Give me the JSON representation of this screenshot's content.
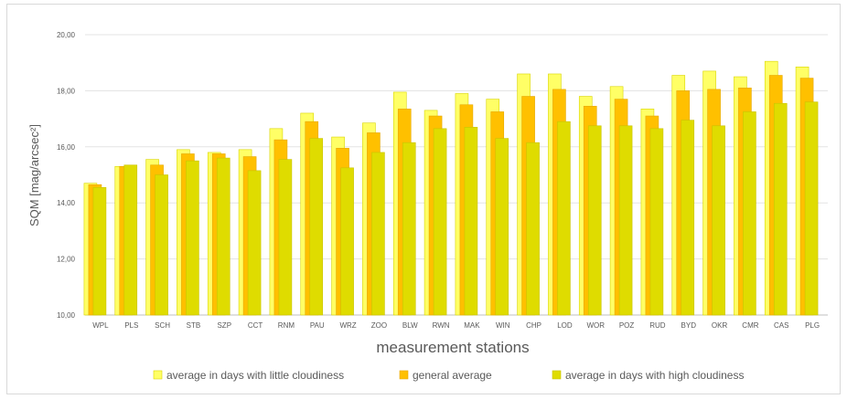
{
  "chart_data": {
    "type": "bar",
    "xlabel": "measurement stations",
    "ylabel": "SQM [mag/arcsec²]",
    "ylim": [
      10,
      20
    ],
    "yticks": [
      "10,00",
      "12,00",
      "14,00",
      "16,00",
      "18,00",
      "20,00"
    ],
    "ytick_values": [
      10,
      12,
      14,
      16,
      18,
      20
    ],
    "grid": true,
    "legend_position": "bottom",
    "categories": [
      "WPL",
      "PLS",
      "SCH",
      "STB",
      "SZP",
      "CCT",
      "RNM",
      "PAU",
      "WRZ",
      "ZOO",
      "BLW",
      "RWN",
      "MAK",
      "WIN",
      "CHP",
      "LOD",
      "WOR",
      "POZ",
      "RUD",
      "BYD",
      "OKR",
      "CMR",
      "CAS",
      "PLG"
    ],
    "series": [
      {
        "name": "average in days with little cloudiness",
        "color": "#ffff66",
        "edge": "#d9d500",
        "values": [
          14.7,
          15.3,
          15.55,
          15.9,
          15.8,
          15.9,
          16.65,
          17.2,
          16.35,
          16.85,
          17.95,
          17.3,
          17.9,
          17.7,
          18.6,
          18.6,
          17.8,
          18.15,
          17.35,
          18.55,
          18.7,
          18.5,
          19.05,
          18.85
        ]
      },
      {
        "name": "general average",
        "color": "#ffc000",
        "edge": "#e6a800",
        "values": [
          14.65,
          15.3,
          15.35,
          15.75,
          15.75,
          15.65,
          16.25,
          16.9,
          15.95,
          16.5,
          17.35,
          17.1,
          17.5,
          17.25,
          17.8,
          18.05,
          17.45,
          17.7,
          17.1,
          18.0,
          18.05,
          18.1,
          18.55,
          18.45
        ]
      },
      {
        "name": "average in days with high cloudiness",
        "color": "#dfdc00",
        "edge": "#c9c400",
        "values": [
          14.55,
          15.35,
          15.0,
          15.5,
          15.6,
          15.15,
          15.55,
          16.3,
          15.25,
          15.8,
          16.15,
          16.65,
          16.7,
          16.3,
          16.15,
          16.9,
          16.75,
          16.75,
          16.65,
          16.95,
          16.75,
          17.25,
          17.55,
          17.6
        ]
      }
    ]
  }
}
